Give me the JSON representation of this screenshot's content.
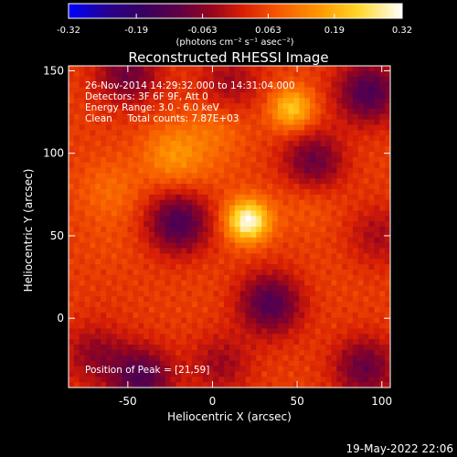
{
  "chart_data": {
    "type": "heatmap",
    "title": "Reconstructed RHESSI Image",
    "xlabel": "Heliocentric X (arcsec)",
    "ylabel": "Heliocentric Y (arcsec)",
    "xlim": [
      -85,
      105
    ],
    "ylim": [
      -42,
      153
    ],
    "xticks": [
      "-50",
      "0",
      "50",
      "100"
    ],
    "yticks": [
      "0",
      "50",
      "100",
      "150"
    ],
    "xtick_values": [
      -50,
      0,
      50,
      100
    ],
    "ytick_values": [
      0,
      50,
      100,
      150
    ],
    "colorbar": {
      "ticks": [
        "-0.32",
        "-0.19",
        "-0.063",
        "0.063",
        "0.19",
        "0.32"
      ],
      "tick_values": [
        -0.32,
        -0.19,
        -0.063,
        0.063,
        0.19,
        0.32
      ],
      "range": [
        -0.32,
        0.32
      ],
      "units": "(photons cm⁻² s⁻¹ asec⁻²)",
      "colormap": "blue-purple-red-yellow-white"
    },
    "info_lines": [
      "26-Nov-2014 14:29:32.000 to 14:31:04.000",
      "Detectors: 3F 6F 9F, Att 0",
      "Energy Range: 3.0 - 6.0 keV",
      "Clean     Total counts: 7.87E+03"
    ],
    "peak_label": "Position of Peak = [21,59]",
    "peak": {
      "x": 21,
      "y": 59,
      "value": 0.32
    },
    "features": [
      {
        "x": 21,
        "y": 59,
        "value": 0.32
      },
      {
        "x": 47,
        "y": 127,
        "value": 0.22
      },
      {
        "x": -23,
        "y": 99,
        "value": 0.15
      },
      {
        "x": 2,
        "y": 115,
        "value": 0.1
      },
      {
        "x": -60,
        "y": 78,
        "value": 0.1
      },
      {
        "x": 56,
        "y": 70,
        "value": 0.08
      },
      {
        "x": 0,
        "y": 88,
        "value": 0.06
      },
      {
        "x": -60,
        "y": 48,
        "value": 0.06
      },
      {
        "x": 70,
        "y": 25,
        "value": 0.05
      },
      {
        "x": -7,
        "y": 17,
        "value": 0.05
      },
      {
        "x": 77,
        "y": 97,
        "value": 0.05
      },
      {
        "x": -62,
        "y": 10,
        "value": 0.04
      },
      {
        "x": 44,
        "y": -5,
        "value": 0.04
      },
      {
        "x": -20,
        "y": 58,
        "value": -0.14
      },
      {
        "x": 34,
        "y": 9,
        "value": -0.13
      },
      {
        "x": 92,
        "y": 137,
        "value": -0.14
      },
      {
        "x": -42,
        "y": -36,
        "value": -0.13
      },
      {
        "x": 60,
        "y": 95,
        "value": -0.1
      },
      {
        "x": 90,
        "y": -30,
        "value": -0.1
      },
      {
        "x": -50,
        "y": 148,
        "value": -0.09
      },
      {
        "x": -70,
        "y": -22,
        "value": -0.05
      },
      {
        "x": 10,
        "y": 142,
        "value": -0.04
      },
      {
        "x": 5,
        "y": -28,
        "value": -0.04
      },
      {
        "x": 98,
        "y": 50,
        "value": -0.03
      }
    ]
  },
  "footer_timestamp": "19-May-2022 22:06"
}
